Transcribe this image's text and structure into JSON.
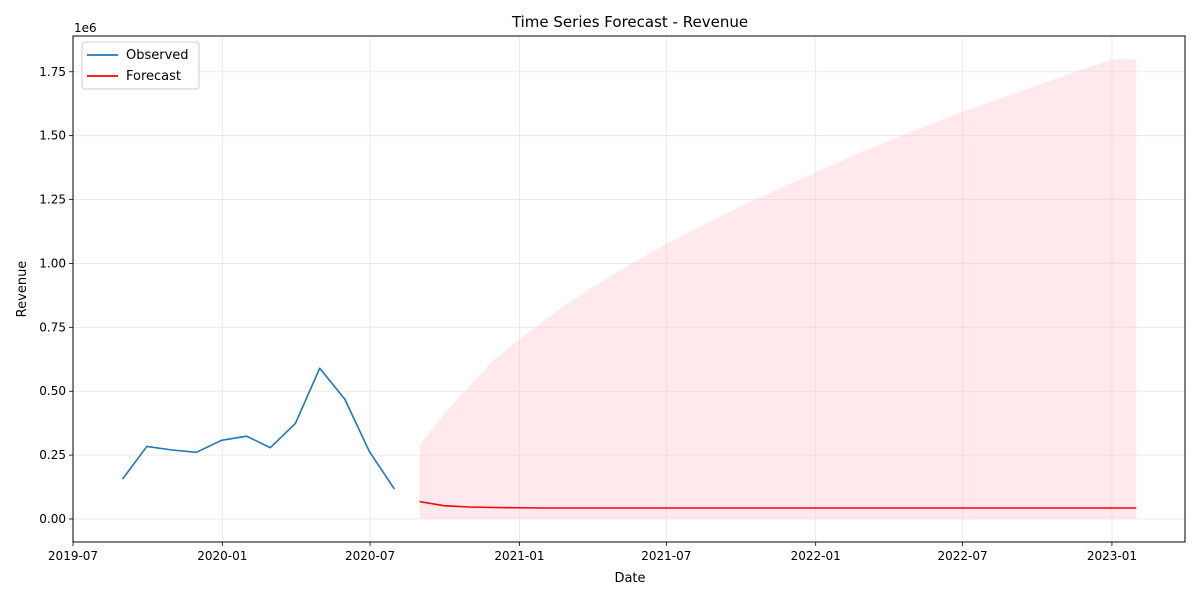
{
  "chart_data": {
    "type": "line",
    "title": "Time Series Forecast - Revenue",
    "xlabel": "Date",
    "ylabel": "Revenue",
    "y_offset_text": "1e6",
    "ylim": [
      -0.09,
      1.89
    ],
    "xlim": [
      "2019-07-01",
      "2023-04-01"
    ],
    "grid": true,
    "legend_position": "top-left",
    "x_ticks": [
      "2019-07",
      "2020-01",
      "2020-07",
      "2021-01",
      "2021-07",
      "2022-01",
      "2022-07",
      "2023-01"
    ],
    "x_tick_dates": [
      "2019-07-01",
      "2020-01-01",
      "2020-07-01",
      "2021-01-01",
      "2021-07-01",
      "2022-01-01",
      "2022-07-01",
      "2023-01-01"
    ],
    "y_ticks": [
      "0.00",
      "0.25",
      "0.50",
      "0.75",
      "1.00",
      "1.25",
      "1.50",
      "1.75"
    ],
    "y_tick_values": [
      0.0,
      0.25,
      0.5,
      0.75,
      1.0,
      1.25,
      1.5,
      1.75
    ],
    "series": [
      {
        "name": "Observed",
        "color": "#1f77b4",
        "x": [
          "2019-08-31",
          "2019-09-30",
          "2019-10-31",
          "2019-11-30",
          "2019-12-31",
          "2020-01-31",
          "2020-02-29",
          "2020-03-31",
          "2020-04-30",
          "2020-05-31",
          "2020-06-30",
          "2020-07-31"
        ],
        "y": [
          0.156,
          0.284,
          0.27,
          0.261,
          0.308,
          0.324,
          0.279,
          0.374,
          0.59,
          0.468,
          0.265,
          0.117
        ]
      },
      {
        "name": "Forecast",
        "color": "#ff0000",
        "x": [
          "2020-08-31",
          "2020-09-30",
          "2020-10-31",
          "2020-11-30",
          "2020-12-31",
          "2021-01-31",
          "2021-02-28",
          "2021-03-31",
          "2021-04-30",
          "2021-05-31",
          "2021-06-30",
          "2021-07-31",
          "2021-08-31",
          "2021-09-30",
          "2021-10-31",
          "2021-11-30",
          "2021-12-31",
          "2022-01-31",
          "2022-02-28",
          "2022-03-31",
          "2022-04-30",
          "2022-05-31",
          "2022-06-30",
          "2022-07-31",
          "2022-08-31",
          "2022-09-30",
          "2022-10-31",
          "2022-11-30",
          "2022-12-31",
          "2023-01-31"
        ],
        "y": [
          0.068,
          0.052,
          0.047,
          0.045,
          0.044,
          0.043,
          0.043,
          0.043,
          0.043,
          0.043,
          0.043,
          0.043,
          0.043,
          0.043,
          0.043,
          0.043,
          0.043,
          0.043,
          0.043,
          0.043,
          0.043,
          0.043,
          0.043,
          0.043,
          0.043,
          0.043,
          0.043,
          0.043,
          0.043,
          0.043
        ]
      }
    ],
    "confidence_band": {
      "color": "#ffc0cb",
      "opacity": 0.35,
      "x": [
        "2020-08-31",
        "2020-09-30",
        "2020-10-31",
        "2020-11-30",
        "2020-12-31",
        "2021-01-31",
        "2021-02-28",
        "2021-03-31",
        "2021-04-30",
        "2021-05-31",
        "2021-06-30",
        "2021-07-31",
        "2021-08-31",
        "2021-09-30",
        "2021-10-31",
        "2021-11-30",
        "2021-12-31",
        "2022-01-31",
        "2022-02-28",
        "2022-03-31",
        "2022-04-30",
        "2022-05-31",
        "2022-06-30",
        "2022-07-31",
        "2022-08-31",
        "2022-09-30",
        "2022-10-31",
        "2022-11-30",
        "2022-12-31",
        "2023-01-31"
      ],
      "upper": [
        0.29,
        0.41,
        0.52,
        0.62,
        0.7,
        0.775,
        0.84,
        0.905,
        0.965,
        1.02,
        1.075,
        1.125,
        1.175,
        1.222,
        1.268,
        1.312,
        1.355,
        1.398,
        1.438,
        1.478,
        1.517,
        1.555,
        1.592,
        1.627,
        1.662,
        1.697,
        1.73,
        1.764,
        1.797,
        1.8
      ],
      "lower": [
        0.0,
        0.0,
        0.0,
        0.0,
        0.0,
        0.0,
        0.0,
        0.0,
        0.0,
        0.0,
        0.0,
        0.0,
        0.0,
        0.0,
        0.0,
        0.0,
        0.0,
        0.0,
        0.0,
        0.0,
        0.0,
        0.0,
        0.0,
        0.0,
        0.0,
        0.0,
        0.0,
        0.0,
        0.0,
        0.0
      ]
    }
  }
}
